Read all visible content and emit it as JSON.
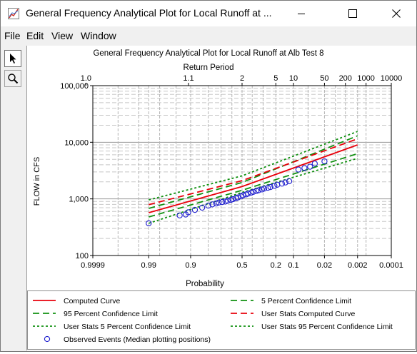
{
  "window": {
    "title": "General Frequency Analytical Plot for Local Runoff at ...",
    "minimize_icon": "minimize-icon",
    "maximize_icon": "maximize-icon",
    "close_icon": "close-icon"
  },
  "menu": {
    "items": [
      "File",
      "Edit",
      "View",
      "Window"
    ]
  },
  "toolbar": {
    "pointer_icon": "arrow-pointer-icon",
    "zoom_icon": "magnifier-icon"
  },
  "chart_data": {
    "type": "line",
    "title": "General Frequency Analytical Plot for Local Runoff at Alb Test 8",
    "top_axis_label": "Return Period",
    "xlabel": "Probability",
    "ylabel": "FLOW in CFS",
    "y_scale": "log",
    "ylim": [
      100,
      100000
    ],
    "x_scale": "normal-probability (exceedance)",
    "xlim": [
      0.9999,
      0.0001
    ],
    "y_ticks": [
      "100",
      "1,000",
      "10,000",
      "100,000"
    ],
    "x_ticks": [
      "0.9999",
      "0.99",
      "0.9",
      "0.5",
      "0.2",
      "0.1",
      "0.02",
      "0.002",
      "0.0001"
    ],
    "top_ticks": [
      "1.0",
      "1.1",
      "2",
      "5",
      "10",
      "50",
      "200",
      "1000",
      "10000"
    ],
    "grid": true,
    "legend_position": "bottom",
    "series": [
      {
        "name": "Computed Curve",
        "color": "#e8000b",
        "dash": "solid",
        "x": [
          0.99,
          0.5,
          0.002
        ],
        "y": [
          570,
          1650,
          9000
        ]
      },
      {
        "name": "5 Percent Confidence Limit",
        "color": "#109010",
        "dash": "dashed",
        "x": [
          0.99,
          0.5,
          0.002
        ],
        "y": [
          480,
          1420,
          6300
        ]
      },
      {
        "name": "95 Percent Confidence Limit",
        "color": "#109010",
        "dash": "dashed",
        "x": [
          0.99,
          0.5,
          0.002
        ],
        "y": [
          680,
          1950,
          13000
        ]
      },
      {
        "name": "User Stats Computed Curve",
        "color": "#e8000b",
        "dash": "dashed",
        "x": [
          0.99,
          0.5,
          0.002
        ],
        "y": [
          790,
          2100,
          11500
        ]
      },
      {
        "name": "User Stats 5 Percent Confidence Limit",
        "color": "#109010",
        "dash": "dotted",
        "x": [
          0.99,
          0.5,
          0.002
        ],
        "y": [
          370,
          1300,
          5200
        ]
      },
      {
        "name": "User Stats 95 Percent Confidence Limit",
        "color": "#109010",
        "dash": "dotted",
        "x": [
          0.99,
          0.5,
          0.002
        ],
        "y": [
          960,
          2550,
          15500
        ]
      },
      {
        "name": "Observed Events (Median plotting positions)",
        "color": "#1f1fcf",
        "dash": "none",
        "marker": "circle",
        "x": [
          0.99,
          0.94,
          0.92,
          0.91,
          0.88,
          0.84,
          0.8,
          0.77,
          0.74,
          0.72,
          0.69,
          0.66,
          0.64,
          0.61,
          0.59,
          0.56,
          0.54,
          0.51,
          0.49,
          0.46,
          0.44,
          0.41,
          0.39,
          0.36,
          0.34,
          0.31,
          0.29,
          0.26,
          0.24,
          0.21,
          0.19,
          0.16,
          0.14,
          0.12,
          0.08,
          0.06,
          0.045,
          0.035,
          0.02
        ],
        "y": [
          370,
          510,
          530,
          580,
          640,
          700,
          760,
          800,
          830,
          860,
          880,
          900,
          930,
          960,
          990,
          1030,
          1060,
          1110,
          1160,
          1200,
          1240,
          1290,
          1330,
          1380,
          1420,
          1470,
          1520,
          1570,
          1620,
          1700,
          1780,
          1860,
          1950,
          2050,
          3300,
          3500,
          3700,
          4200,
          4600
        ]
      }
    ]
  },
  "legend": {
    "items": [
      {
        "label": "Computed Curve",
        "color": "#e8000b",
        "dash": "solid"
      },
      {
        "label": "5 Percent Confidence Limit",
        "color": "#109010",
        "dash": "dashed"
      },
      {
        "label": "95 Percent Confidence Limit",
        "color": "#109010",
        "dash": "dashed"
      },
      {
        "label": "User Stats Computed Curve",
        "color": "#e8000b",
        "dash": "dashed"
      },
      {
        "label": "User Stats 5 Percent Confidence Limit",
        "color": "#109010",
        "dash": "dotted"
      },
      {
        "label": "User Stats 95 Percent Confidence Limit",
        "color": "#109010",
        "dash": "dotted"
      },
      {
        "label": "Observed Events (Median plotting positions)",
        "color": "#1f1fcf",
        "dash": "marker"
      }
    ]
  }
}
